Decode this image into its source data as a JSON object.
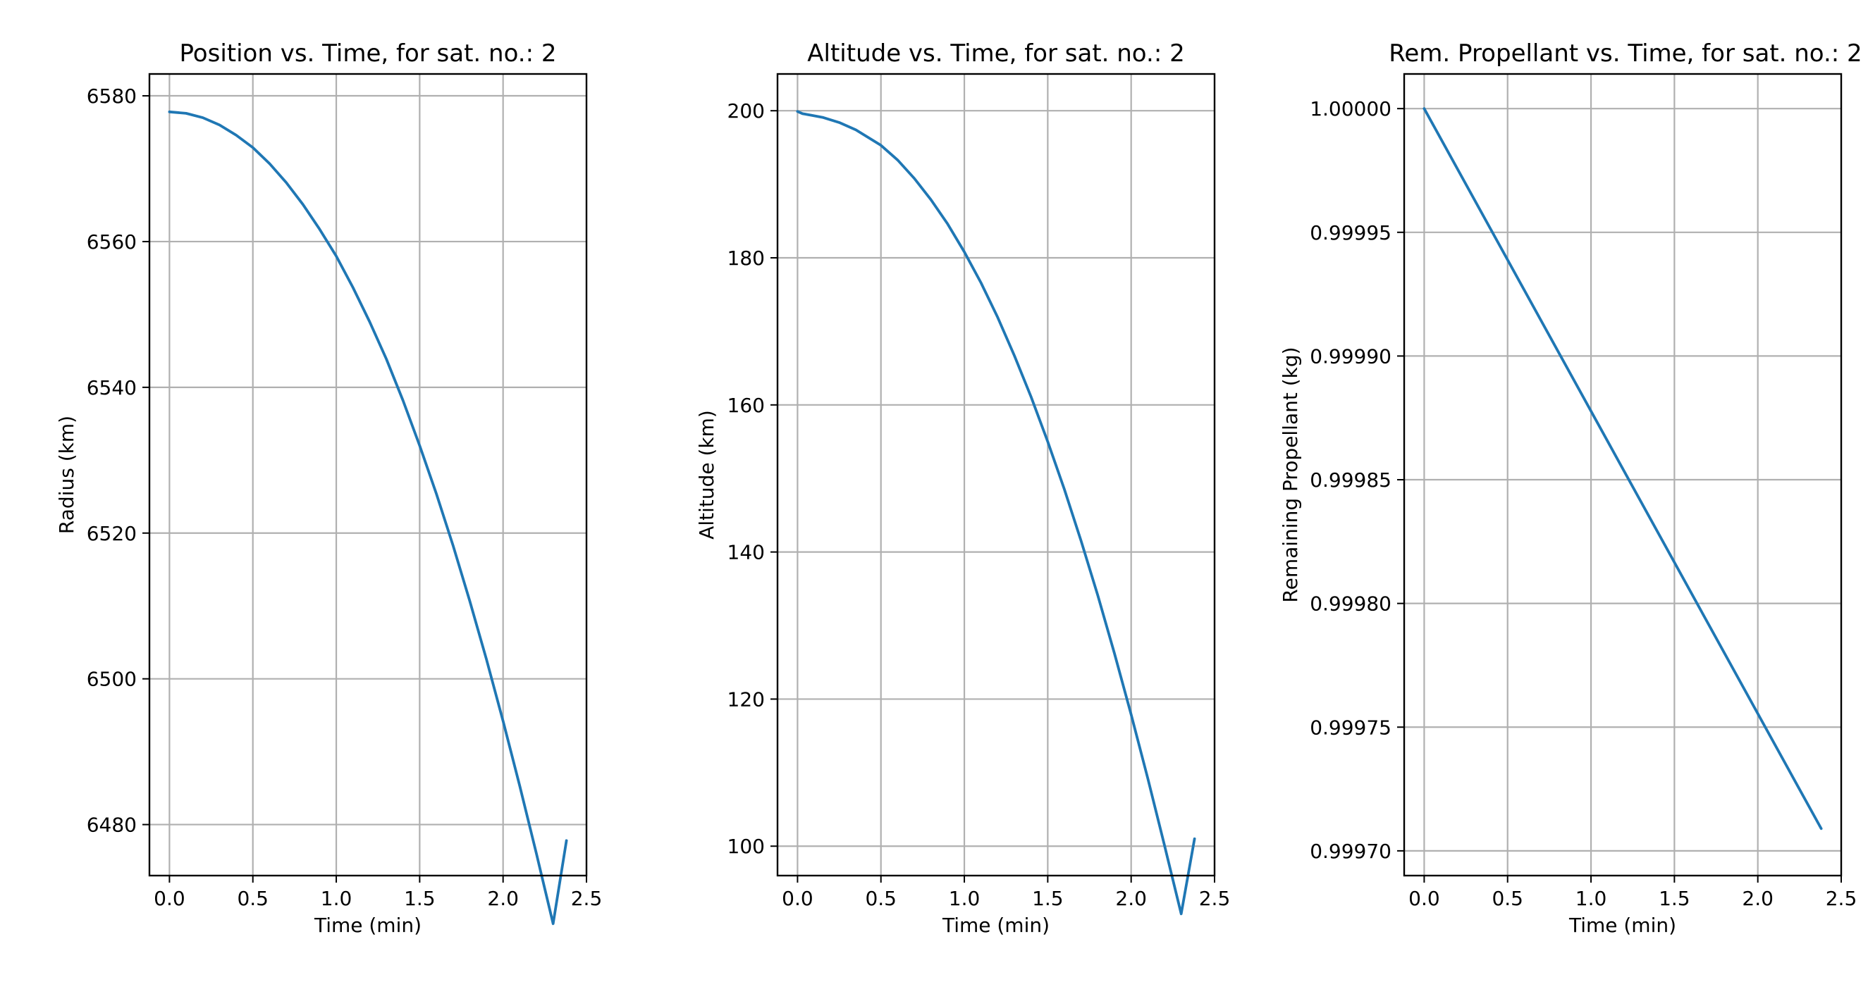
{
  "colors": {
    "series": "#1f77b4",
    "grid": "#b0b0b0",
    "axes": "#000000"
  },
  "chart_data": [
    {
      "type": "line",
      "title": "Position vs. Time, for sat. no.: 2",
      "xlabel": "Time (min)",
      "ylabel": "Radius (km)",
      "xlim": [
        -0.12,
        2.5
      ],
      "ylim": [
        6473,
        6583
      ],
      "xticks": [
        0.0,
        0.5,
        1.0,
        1.5,
        2.0,
        2.5
      ],
      "xtick_labels": [
        "0.0",
        "0.5",
        "1.0",
        "1.5",
        "2.0",
        "2.5"
      ],
      "yticks": [
        6480,
        6500,
        6520,
        6540,
        6560,
        6580
      ],
      "ytick_labels": [
        "6480",
        "6500",
        "6520",
        "6540",
        "6560",
        "6580"
      ],
      "grid": true,
      "series": [
        {
          "x": [
            0.0,
            0.1,
            0.2,
            0.3,
            0.4,
            0.5,
            0.6,
            0.7,
            0.8,
            0.9,
            1.0,
            1.1,
            1.2,
            1.3,
            1.4,
            1.5,
            1.6,
            1.7,
            1.8,
            1.9,
            2.0,
            2.1,
            2.2,
            2.3,
            2.38
          ],
          "values": [
            6577.8,
            6577.6,
            6577.0,
            6576.0,
            6574.6,
            6572.9,
            6570.7,
            6568.1,
            6565.1,
            6561.7,
            6558.0,
            6553.7,
            6549.0,
            6543.9,
            6538.2,
            6532.0,
            6525.4,
            6518.3,
            6510.7,
            6502.7,
            6494.2,
            6485.3,
            6476.0,
            6466.4,
            6477.8
          ]
        }
      ]
    },
    {
      "type": "line",
      "title": "Altitude vs. Time, for sat. no.: 2",
      "xlabel": "Time (min)",
      "ylabel": "Altitude (km)",
      "xlim": [
        -0.12,
        2.5
      ],
      "ylim": [
        96,
        205
      ],
      "xticks": [
        0.0,
        0.5,
        1.0,
        1.5,
        2.0,
        2.5
      ],
      "xtick_labels": [
        "0.0",
        "0.5",
        "1.0",
        "1.5",
        "2.0",
        "2.5"
      ],
      "yticks": [
        100,
        120,
        140,
        160,
        180,
        200
      ],
      "ytick_labels": [
        "100",
        "120",
        "140",
        "160",
        "180",
        "200"
      ],
      "grid": true,
      "series": [
        {
          "x": [
            0.0,
            0.03,
            0.08,
            0.15,
            0.25,
            0.35,
            0.5,
            0.6,
            0.7,
            0.8,
            0.9,
            1.0,
            1.1,
            1.2,
            1.3,
            1.4,
            1.5,
            1.6,
            1.7,
            1.8,
            1.9,
            2.0,
            2.1,
            2.2,
            2.3,
            2.38
          ],
          "values": [
            199.9,
            199.6,
            199.4,
            199.1,
            198.4,
            197.4,
            195.3,
            193.3,
            190.8,
            187.9,
            184.6,
            180.8,
            176.6,
            171.9,
            166.7,
            161.1,
            155.0,
            148.5,
            141.5,
            134.1,
            126.2,
            117.9,
            109.2,
            100.1,
            90.8,
            101.0
          ]
        }
      ]
    },
    {
      "type": "line",
      "title": "Rem. Propellant vs. Time, for sat. no.: 2",
      "xlabel": "Time (min)",
      "ylabel": "Remaining Propellant (kg)",
      "xlim": [
        -0.12,
        2.5
      ],
      "ylim": [
        0.99969,
        1.000014
      ],
      "xticks": [
        0.0,
        0.5,
        1.0,
        1.5,
        2.0,
        2.5
      ],
      "xtick_labels": [
        "0.0",
        "0.5",
        "1.0",
        "1.5",
        "2.0",
        "2.5"
      ],
      "yticks": [
        0.9997,
        0.99975,
        0.9998,
        0.99985,
        0.9999,
        0.99995,
        1.0
      ],
      "ytick_labels": [
        "0.99970",
        "0.99975",
        "0.99980",
        "0.99985",
        "0.99990",
        "0.99995",
        "1.00000"
      ],
      "grid": true,
      "series": [
        {
          "x": [
            0.0,
            2.38
          ],
          "values": [
            1.0,
            0.999709
          ]
        }
      ]
    }
  ]
}
